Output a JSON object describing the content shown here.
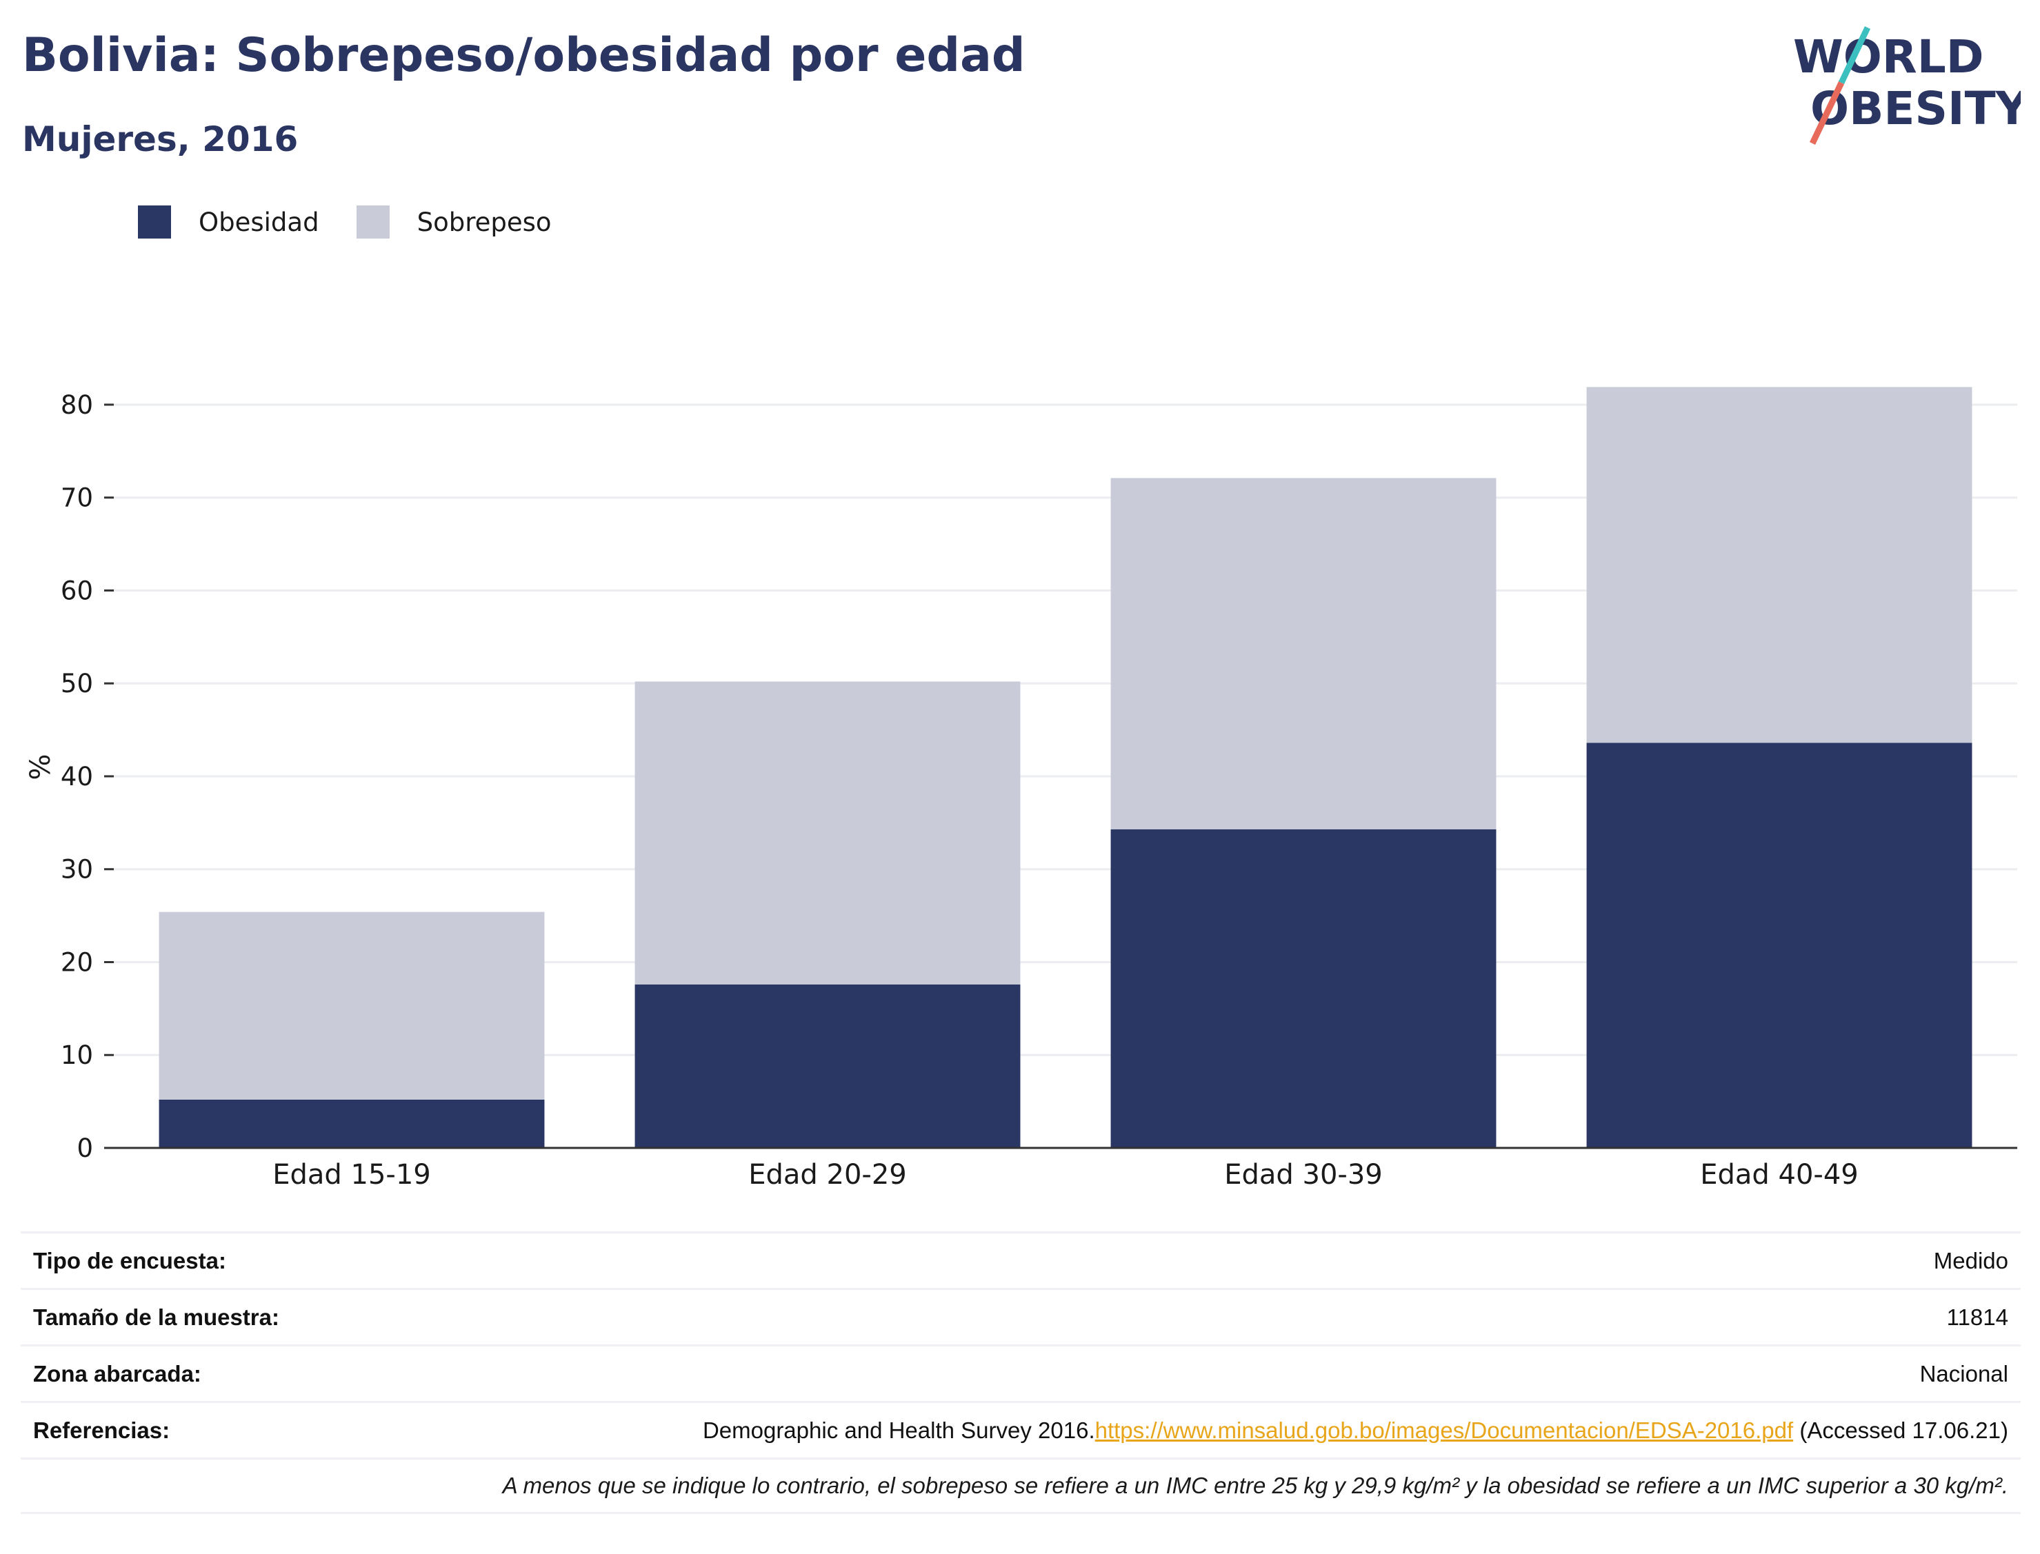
{
  "header": {
    "title": "Bolivia: Sobrepeso/obesidad por edad",
    "subtitle": "Mujeres, 2016"
  },
  "logo": {
    "line1": "WORLD",
    "line2": "OBESITY"
  },
  "legend": [
    {
      "label": "Obesidad",
      "color": "#2a3663"
    },
    {
      "label": "Sobrepeso",
      "color": "#c9ccd8"
    }
  ],
  "chart_data": {
    "type": "bar",
    "stacked": true,
    "categories": [
      "Edad 15-19",
      "Edad 20-29",
      "Edad 30-39",
      "Edad 40-49"
    ],
    "series": [
      {
        "name": "Obesidad",
        "values": [
          5.2,
          17.6,
          34.3,
          43.6
        ],
        "color": "#2a3663"
      },
      {
        "name": "Sobrepeso",
        "values": [
          20.2,
          32.6,
          37.8,
          38.3
        ],
        "color": "#c9ccd8"
      }
    ],
    "ylabel": "%",
    "ylim": [
      0,
      82
    ],
    "yticks": [
      0,
      10,
      20,
      30,
      40,
      50,
      60,
      70,
      80
    ],
    "grid": true,
    "legend_position": "top-left"
  },
  "info": {
    "survey_type_label": "Tipo de encuesta:",
    "survey_type_value": "Medido",
    "sample_size_label": "Tamaño de la muestra:",
    "sample_size_value": "11814",
    "area_label": "Zona abarcada:",
    "area_value": "Nacional",
    "references_label": "Referencias:",
    "references_text": "Demographic and Health Survey 2016.",
    "references_link": "https://www.minsalud.gob.bo/images/Documentacion/EDSA-2016.pdf",
    "references_accessed": " (Accessed 17.06.21)",
    "note": "A menos que se indique lo contrario, el sobrepeso se refiere a un IMC entre 25 kg y 29,9 kg/m² y la obesidad se refiere a un IMC superior a 30 kg/m²."
  }
}
